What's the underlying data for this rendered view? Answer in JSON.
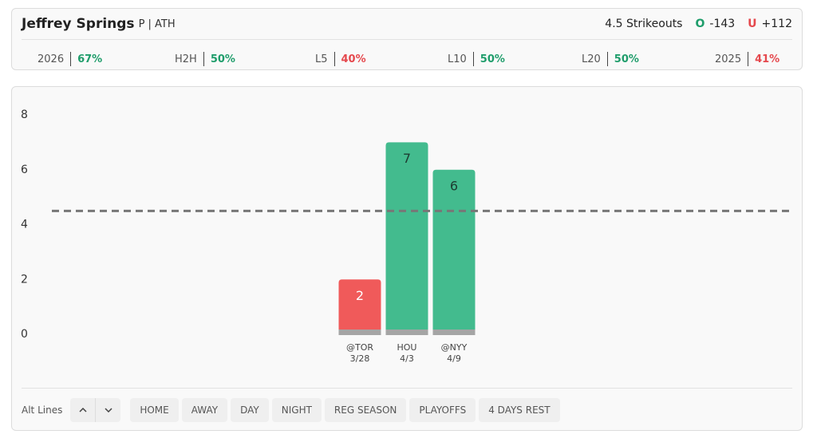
{
  "header": {
    "name": "Jeffrey Springs",
    "position": "P | ATH",
    "prop": "4.5 Strikeouts",
    "over_label": "O",
    "over_odds": "-143",
    "under_label": "U",
    "under_odds": "+112"
  },
  "stats": [
    {
      "label": "2026",
      "value": "67%",
      "color": "#1f9d6b"
    },
    {
      "label": "H2H",
      "value": "50%",
      "color": "#1f9d6b"
    },
    {
      "label": "L5",
      "value": "40%",
      "color": "#e5484d"
    },
    {
      "label": "L10",
      "value": "50%",
      "color": "#1f9d6b"
    },
    {
      "label": "L20",
      "value": "50%",
      "color": "#1f9d6b"
    },
    {
      "label": "2025",
      "value": "41%",
      "color": "#e5484d"
    }
  ],
  "chart_data": {
    "type": "bar",
    "categories": [
      "@TOR",
      "HOU",
      "@NYY"
    ],
    "dates": [
      "3/28",
      "4/3",
      "4/9"
    ],
    "values": [
      2,
      7,
      6
    ],
    "colors": [
      "#f05a5a",
      "#43bb8e",
      "#43bb8e"
    ],
    "threshold": 4.5,
    "ylim": [
      0,
      8
    ],
    "yticks": [
      0,
      2,
      4,
      6,
      8
    ]
  },
  "toolbar": {
    "label": "Alt Lines",
    "filters": [
      "HOME",
      "AWAY",
      "DAY",
      "NIGHT",
      "REG SEASON",
      "PLAYOFFS",
      "4 DAYS REST"
    ]
  }
}
